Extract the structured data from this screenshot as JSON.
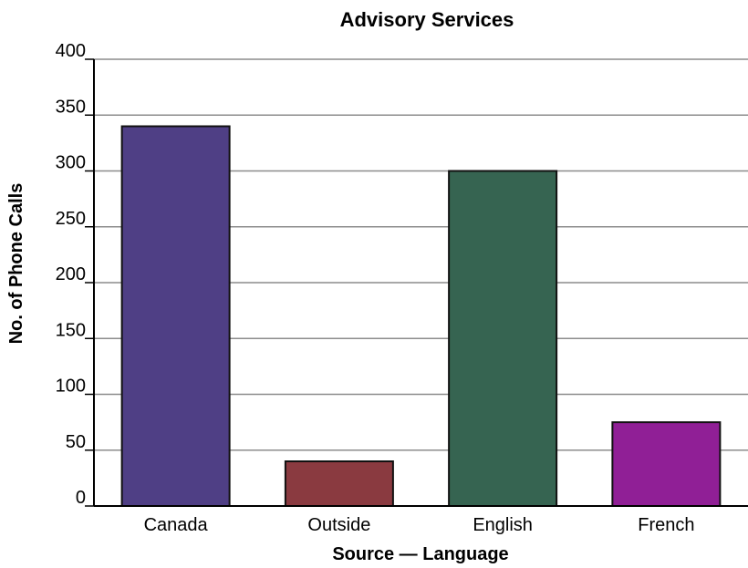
{
  "chart_data": {
    "type": "bar",
    "title": "Advisory Services",
    "xlabel": "Source — Language",
    "ylabel": "No. of Phone Calls",
    "categories": [
      "Canada",
      "Outside",
      "English",
      "French"
    ],
    "values": [
      340,
      40,
      300,
      75
    ],
    "colors": [
      "#4f3f85",
      "#8a3a40",
      "#366451",
      "#901f96"
    ],
    "ylim": [
      0,
      400
    ],
    "yticks": [
      0,
      50,
      100,
      150,
      200,
      250,
      300,
      350,
      400
    ],
    "grid": true
  }
}
